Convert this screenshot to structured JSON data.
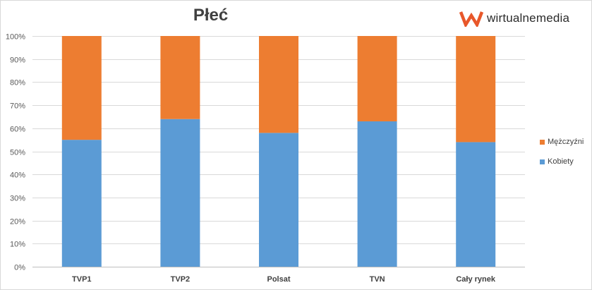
{
  "chart_data": {
    "type": "bar",
    "stacked": true,
    "title": "Płeć",
    "categories": [
      "TVP1",
      "TVP2",
      "Polsat",
      "TVN",
      "Cały rynek"
    ],
    "series": [
      {
        "name": "Kobiety",
        "color": "#5b9bd5",
        "values": [
          55,
          64,
          58,
          63,
          54
        ]
      },
      {
        "name": "Mężczyźni",
        "color": "#ed7d31",
        "values": [
          45,
          36,
          42,
          37,
          46
        ]
      }
    ],
    "ylim": [
      0,
      100
    ],
    "yticks": [
      "0%",
      "10%",
      "20%",
      "30%",
      "40%",
      "50%",
      "60%",
      "70%",
      "80%",
      "90%",
      "100%"
    ],
    "grid": true,
    "legend_position": "right"
  },
  "brand": {
    "name": "wirtualnemedia",
    "logo_color": "#e8572a"
  }
}
